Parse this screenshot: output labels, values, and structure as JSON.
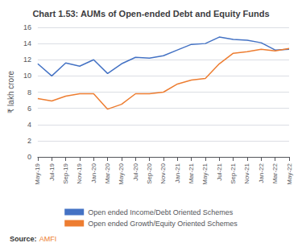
{
  "chart_data": {
    "type": "line",
    "title": "Chart 1.53: AUMs of Open-ended Debt and Equity Funds",
    "ylabel": "₹ lakh crore",
    "annotations": [
      "Source:",
      "AMFI"
    ],
    "categories": [
      "May-19",
      "Jul-19",
      "Sep-19",
      "Nov-19",
      "Jan-20",
      "Mar-20",
      "May-20",
      "Jul-20",
      "Sep-20",
      "Nov-20",
      "Jan-21",
      "Mar-21",
      "May-21",
      "Jul-21",
      "Sep-21",
      "Nov-21",
      "Jan-22",
      "Mar-22",
      "May-22"
    ],
    "series": [
      {
        "name": "Open ended Income/Debt Oriented Schemes",
        "color": "#4472c4",
        "values": [
          11.5,
          10.0,
          11.6,
          11.2,
          12.0,
          10.3,
          11.5,
          12.3,
          12.2,
          12.5,
          13.2,
          13.9,
          14.0,
          14.8,
          14.5,
          14.4,
          14.1,
          13.2,
          13.3
        ]
      },
      {
        "name": "Open ended Growth/Equity Oriented Schemes",
        "color": "#ed7d31",
        "values": [
          7.2,
          6.9,
          7.5,
          7.8,
          7.8,
          5.9,
          6.5,
          7.8,
          7.8,
          8.0,
          9.0,
          9.5,
          9.7,
          11.5,
          12.8,
          13.0,
          13.3,
          13.1,
          13.4
        ]
      }
    ],
    "ylim": [
      0,
      16
    ],
    "yticks": [
      0,
      2,
      4,
      6,
      8,
      10,
      12,
      14,
      16
    ],
    "grid": true,
    "legend": "bottom"
  }
}
